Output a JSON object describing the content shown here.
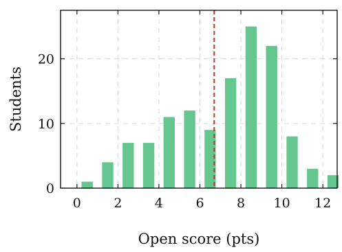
{
  "chart_data": {
    "type": "bar",
    "xlabel": "Open score (pts)",
    "ylabel": "Students",
    "x": [
      0.5,
      1.5,
      2.5,
      3.5,
      4.5,
      5.5,
      6.5,
      7.5,
      8.5,
      9.5,
      10.5,
      11.5,
      12.5
    ],
    "values": [
      1,
      4,
      7,
      7,
      11,
      12,
      9,
      17,
      25,
      22,
      8,
      3,
      2
    ],
    "bar_width": 0.55,
    "xlim": [
      -0.8,
      12.7
    ],
    "ylim": [
      0,
      27.5
    ],
    "xticks": [
      0,
      2,
      4,
      6,
      8,
      10,
      12
    ],
    "yticks": [
      0,
      10,
      20
    ],
    "grid": true,
    "reference_line": {
      "x": 6.7,
      "style": "dashed",
      "color": "#b23b2e"
    },
    "bar_color": "#66c690"
  }
}
